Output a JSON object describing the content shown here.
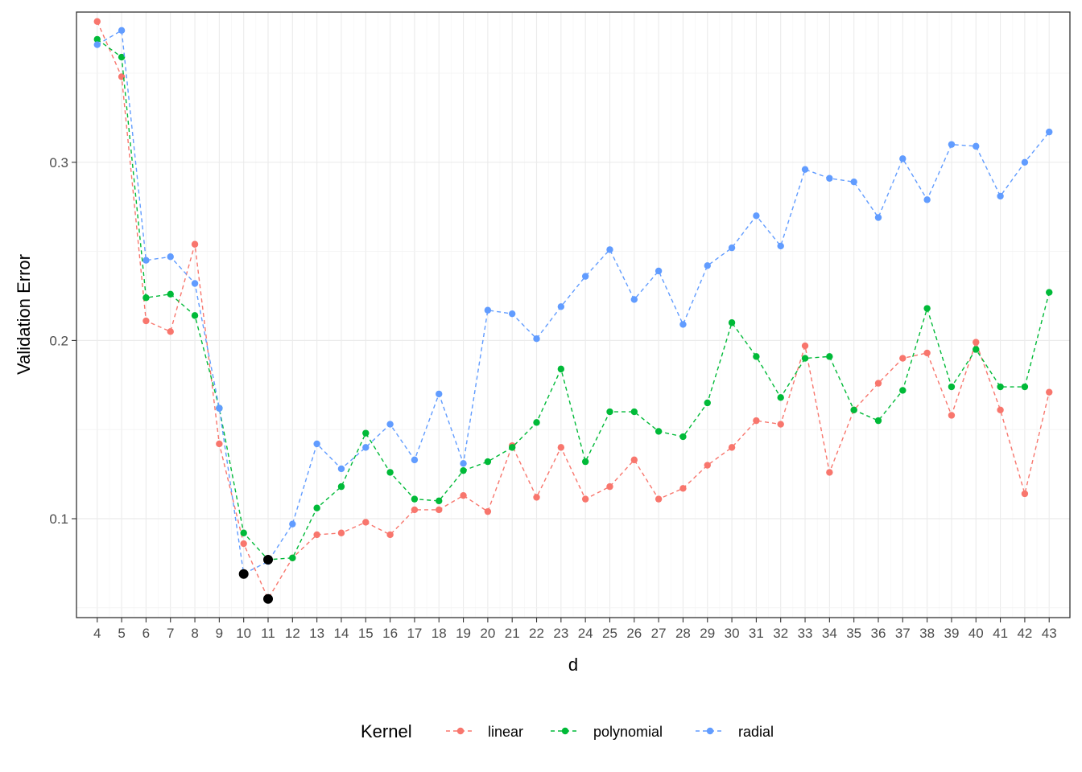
{
  "chart_data": {
    "type": "line",
    "title": "",
    "xlabel": "d",
    "ylabel": "Validation Error",
    "x": [
      4,
      5,
      6,
      7,
      8,
      9,
      10,
      11,
      12,
      13,
      14,
      15,
      16,
      17,
      18,
      19,
      20,
      21,
      22,
      23,
      24,
      25,
      26,
      27,
      28,
      29,
      30,
      31,
      32,
      33,
      34,
      35,
      36,
      37,
      38,
      39,
      40,
      41,
      42,
      43
    ],
    "xlim": [
      3.15,
      43.85
    ],
    "ylim": [
      0.0445,
      0.3843
    ],
    "y_ticks": [
      0.1,
      0.2,
      0.3
    ],
    "y_tick_labels": [
      "0.1",
      "0.2",
      "0.3"
    ],
    "grid": true,
    "legend_position": "bottom",
    "legend_title": "Kernel",
    "series": [
      {
        "name": "linear",
        "color": "#F8766D",
        "values": [
          0.379,
          0.348,
          0.211,
          0.205,
          0.254,
          0.142,
          0.086,
          0.055,
          0.078,
          0.091,
          0.092,
          0.098,
          0.091,
          0.105,
          0.105,
          0.113,
          0.104,
          0.141,
          0.112,
          0.14,
          0.111,
          0.118,
          0.133,
          0.111,
          0.117,
          0.13,
          0.14,
          0.155,
          0.153,
          0.197,
          0.126,
          0.161,
          0.176,
          0.19,
          0.193,
          0.158,
          0.199,
          0.161,
          0.114,
          0.171
        ]
      },
      {
        "name": "polynomial",
        "color": "#00BA38",
        "values": [
          0.369,
          0.359,
          0.224,
          0.226,
          0.214,
          0.162,
          0.092,
          0.077,
          0.078,
          0.106,
          0.118,
          0.148,
          0.126,
          0.111,
          0.11,
          0.127,
          0.132,
          0.14,
          0.154,
          0.184,
          0.132,
          0.16,
          0.16,
          0.149,
          0.146,
          0.165,
          0.21,
          0.191,
          0.168,
          0.19,
          0.191,
          0.161,
          0.155,
          0.172,
          0.218,
          0.174,
          0.195,
          0.174,
          0.174,
          0.227
        ]
      },
      {
        "name": "radial",
        "color": "#619CFF",
        "values": [
          0.366,
          0.374,
          0.245,
          0.247,
          0.232,
          0.162,
          0.069,
          0.076,
          0.097,
          0.142,
          0.128,
          0.14,
          0.153,
          0.133,
          0.17,
          0.131,
          0.217,
          0.215,
          0.201,
          0.219,
          0.236,
          0.251,
          0.223,
          0.239,
          0.209,
          0.242,
          0.252,
          0.27,
          0.253,
          0.296,
          0.291,
          0.289,
          0.269,
          0.302,
          0.279,
          0.31,
          0.309,
          0.281,
          0.3,
          0.317
        ]
      }
    ],
    "highlight_points": [
      {
        "x": 10,
        "y": 0.069
      },
      {
        "x": 11,
        "y": 0.055
      },
      {
        "x": 11,
        "y": 0.077
      }
    ]
  }
}
